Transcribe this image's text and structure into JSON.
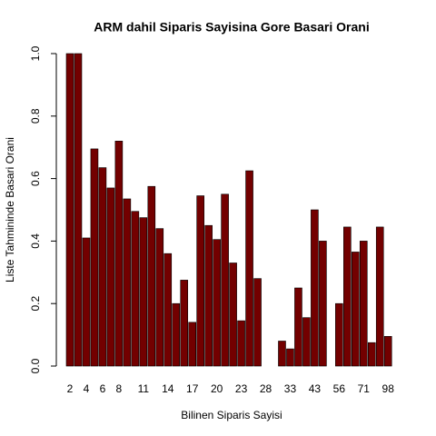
{
  "chart_data": {
    "type": "bar",
    "title": "ARM dahil Siparis Sayisina Gore Basari Orani",
    "x_label": "Bilinen Siparis Sayisi",
    "y_label": "Liste Tahmininde Basari Orani",
    "color": "#730000",
    "categories": [
      "2",
      null,
      "4",
      null,
      "6",
      null,
      "8",
      null,
      null,
      "11",
      null,
      null,
      "14",
      null,
      null,
      "17",
      null,
      null,
      "20",
      null,
      null,
      "23",
      null,
      null,
      "28",
      null,
      null,
      "33",
      null,
      null,
      "43",
      null,
      null,
      "56",
      null,
      null,
      "71",
      null,
      null,
      "98"
    ],
    "values": [
      1.0,
      1.0,
      0.41,
      0.695,
      0.635,
      0.57,
      0.72,
      0.535,
      0.495,
      0.475,
      0.575,
      0.44,
      0.36,
      0.2,
      0.275,
      0.14,
      0.545,
      0.45,
      0.405,
      0.55,
      0.33,
      0.145,
      0.625,
      0.28,
      0.0,
      0.0,
      0.08,
      0.055,
      0.25,
      0.155,
      0.5,
      0.4,
      0.0,
      0.2,
      0.445,
      0.365,
      0.4,
      0.075,
      0.445,
      0.095
    ],
    "ylim": [
      0,
      1
    ],
    "yticks": [
      {
        "value": 0,
        "label": "0.0"
      },
      0.2,
      0.4,
      0.6,
      0.8,
      {
        "value": 1,
        "label": "1.0"
      }
    ]
  }
}
